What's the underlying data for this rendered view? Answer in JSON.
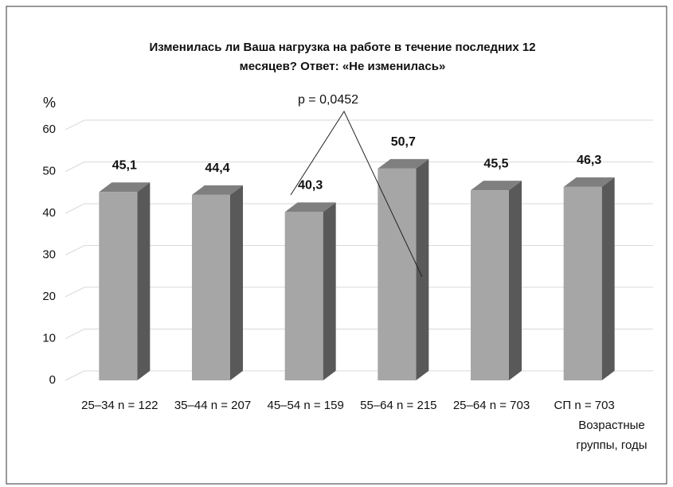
{
  "chart_data": {
    "type": "bar3d",
    "title": "Изменилась ли Ваша нагрузка на работе в течение последних 12 месяцев? Ответ: «Не изменилась»",
    "y_label": "%",
    "x_label": "Возрастные группы, годы",
    "annotation": "p = 0,0452",
    "categories": [
      "25–34 n = 122",
      "35–44 n = 207",
      "45–54 n = 159",
      "55–64 n = 215",
      "25–64 n = 703",
      "СП n = 703"
    ],
    "values": [
      45.1,
      44.4,
      40.3,
      50.7,
      45.5,
      46.3
    ],
    "value_labels": [
      "45,1",
      "44,4",
      "40,3",
      "50,7",
      "45,5",
      "46,3"
    ],
    "color": "#a6a6a6",
    "ylim": [
      0,
      60
    ],
    "yticks": [
      0,
      10,
      20,
      30,
      40,
      50,
      60
    ],
    "grid": true
  }
}
